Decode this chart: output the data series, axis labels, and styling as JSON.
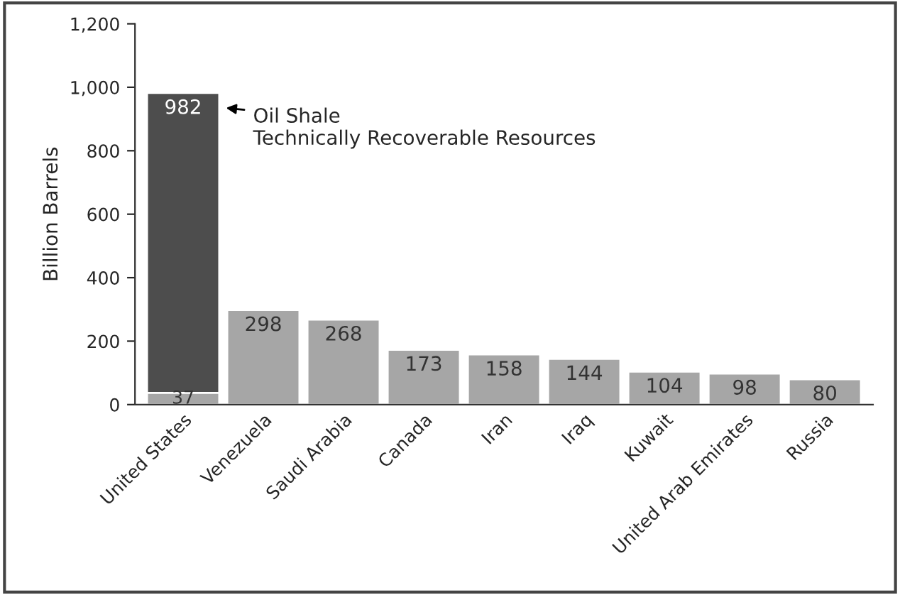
{
  "chart_data": {
    "type": "bar",
    "ylabel": "Billion Barrels",
    "categories": [
      "United States",
      "Venezuela",
      "Saudi Arabia",
      "Canada",
      "Iran",
      "Iraq",
      "Kuwait",
      "United Arab Emirates",
      "Russia"
    ],
    "series": [
      {
        "color": "#4d4d4d",
        "values": [
          982,
          null,
          null,
          null,
          null,
          null,
          null,
          null,
          null
        ]
      },
      {
        "color": "#a6a6a6",
        "values": [
          37,
          298,
          268,
          173,
          158,
          144,
          104,
          98,
          80
        ]
      }
    ],
    "ylim": [
      0,
      1200
    ],
    "yticks": [
      0,
      200,
      400,
      600,
      800,
      {
        "value": 1000,
        "label": "1,000"
      },
      {
        "value": 1200,
        "label": "1,200"
      }
    ],
    "data_labels": true,
    "grid": false,
    "legend": false,
    "annotations": [
      "Oil Shale\nTechnically Recoverable Resources"
    ]
  }
}
